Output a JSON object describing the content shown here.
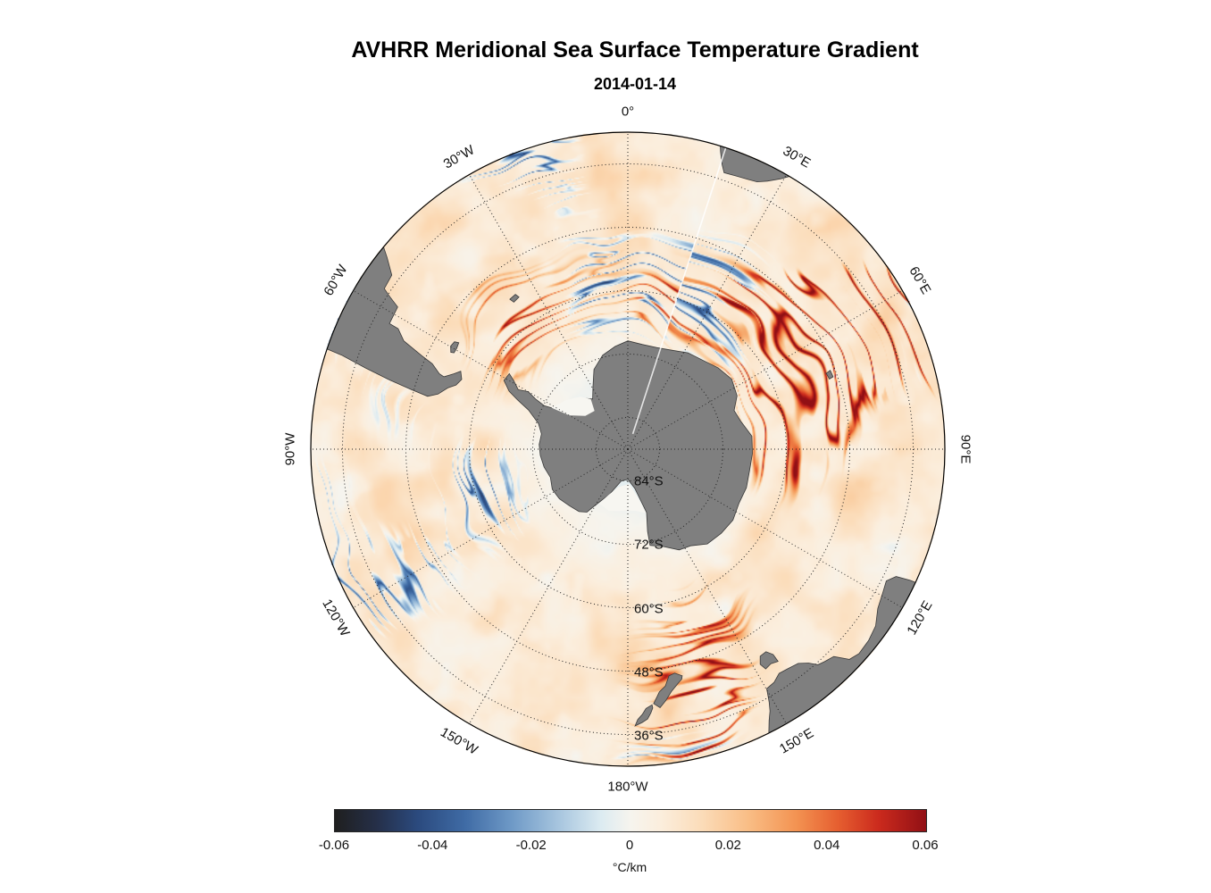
{
  "figure": {
    "title": "AVHRR Meridional Sea Surface Temperature Gradient",
    "subtitle": "2014-01-14"
  },
  "chart_data": {
    "type": "heatmap",
    "title": "AVHRR Meridional Sea Surface Temperature Gradient",
    "subtitle_date": "2014-01-14",
    "projection": "south-polar stereographic, pole centered, 0° at top, east longitudes clockwise",
    "field": "meridional sea surface temperature gradient",
    "units": "°C/km",
    "value_range": [
      -0.06,
      0.06
    ],
    "colorbar": {
      "orientation": "horizontal",
      "tick_labels": [
        "-0.06",
        "-0.04",
        "-0.02",
        "0",
        "0.02",
        "0.04",
        "0.06"
      ],
      "unit_label": "°C/km",
      "stops": [
        [
          0.0,
          "#1f1f1f"
        ],
        [
          0.07,
          "#252f48"
        ],
        [
          0.14,
          "#2b4a7e"
        ],
        [
          0.22,
          "#3f6ba5"
        ],
        [
          0.3,
          "#6f9ac7"
        ],
        [
          0.38,
          "#a8c6df"
        ],
        [
          0.45,
          "#dcebf1"
        ],
        [
          0.5,
          "#f6f4ee"
        ],
        [
          0.55,
          "#fbeedd"
        ],
        [
          0.62,
          "#fbdcb9"
        ],
        [
          0.7,
          "#f9bd85"
        ],
        [
          0.78,
          "#f39352"
        ],
        [
          0.85,
          "#e65f30"
        ],
        [
          0.92,
          "#cb2a1d"
        ],
        [
          1.0,
          "#911015"
        ]
      ]
    },
    "graticule": {
      "style": "dotted",
      "outer_latitude_S": 30,
      "parallels_deg_S": [
        84,
        72,
        60,
        48,
        36
      ],
      "parallel_labels": [
        "84°S",
        "72°S",
        "60°S",
        "48°S",
        "36°S"
      ],
      "meridians": [
        {
          "lon": 0,
          "label": "0°"
        },
        {
          "lon": 30,
          "label": "30°E"
        },
        {
          "lon": 60,
          "label": "60°E"
        },
        {
          "lon": 90,
          "label": "90°E"
        },
        {
          "lon": 120,
          "label": "120°E"
        },
        {
          "lon": 150,
          "label": "150°E"
        },
        {
          "lon": 180,
          "label": "180°W"
        },
        {
          "lon": -150,
          "label": "150°W"
        },
        {
          "lon": -120,
          "label": "120°W"
        },
        {
          "lon": -90,
          "label": "90°W"
        },
        {
          "lon": -60,
          "label": "60°W"
        },
        {
          "lon": -30,
          "label": "30°W"
        }
      ]
    },
    "swath_boundary_lon_E": 18,
    "texture": {
      "seed": 20140114,
      "description": "mottled pale-cream field of weak positive gradients over the Southern Ocean with dense meandering red filaments (strong positive gradients) along the Antarctic Circumpolar Current and Agulhas Return Current, sparse blue (negative) filaments, and very pale near-zero values close to the Antarctic coast"
    },
    "land": {
      "color": "#7f7f7f",
      "outline": "#3a3a3a",
      "ice_color": "#f7f6f1",
      "polygons": {
        "antarctica": [
          [
            0,
            -69.5
          ],
          [
            8,
            -70
          ],
          [
            16,
            -70
          ],
          [
            24,
            -69.5
          ],
          [
            32,
            -68.5
          ],
          [
            40,
            -68
          ],
          [
            48,
            -67
          ],
          [
            56,
            -66.3
          ],
          [
            64,
            -67
          ],
          [
            70,
            -68.6
          ],
          [
            76,
            -68
          ],
          [
            84,
            -66.4
          ],
          [
            92,
            -66.4
          ],
          [
            100,
            -66.6
          ],
          [
            108,
            -66.4
          ],
          [
            116,
            -66.6
          ],
          [
            124,
            -66
          ],
          [
            132,
            -66.2
          ],
          [
            140,
            -66.6
          ],
          [
            147,
            -68.2
          ],
          [
            153,
            -68.6
          ],
          [
            160,
            -70.4
          ],
          [
            167,
            -71.3
          ],
          [
            166.5,
            -74
          ],
          [
            163.5,
            -77.5
          ],
          [
            170,
            -82.5
          ],
          [
            180,
            -84.3
          ],
          [
            -168,
            -83.8
          ],
          [
            -158,
            -80.8
          ],
          [
            -150,
            -77.8
          ],
          [
            -147,
            -75.8
          ],
          [
            -142,
            -75
          ],
          [
            -134,
            -74.6
          ],
          [
            -126,
            -74
          ],
          [
            -118,
            -73.8
          ],
          [
            -110,
            -74.4
          ],
          [
            -102,
            -73.8
          ],
          [
            -94,
            -73.4
          ],
          [
            -87,
            -73.2
          ],
          [
            -80,
            -73.4
          ],
          [
            -74,
            -72.4
          ],
          [
            -68.5,
            -69.8
          ],
          [
            -66,
            -67.2
          ],
          [
            -64,
            -65
          ],
          [
            -61,
            -63.2
          ],
          [
            -57.5,
            -63.4
          ],
          [
            -59,
            -64.8
          ],
          [
            -61.5,
            -66.4
          ],
          [
            -60,
            -68.2
          ],
          [
            -61.5,
            -70.2
          ],
          [
            -62.5,
            -72.2
          ],
          [
            -61,
            -74.2
          ],
          [
            -52,
            -75.6
          ],
          [
            -42,
            -77
          ],
          [
            -35,
            -78.4
          ],
          [
            -29,
            -76.4
          ],
          [
            -23,
            -73.6
          ],
          [
            -15,
            -71.6
          ],
          [
            -7,
            -70.4
          ]
        ],
        "south-america": [
          [
            -71.5,
            -29
          ],
          [
            -71.8,
            -33
          ],
          [
            -72.8,
            -38
          ],
          [
            -73.8,
            -43
          ],
          [
            -74.6,
            -47.5
          ],
          [
            -75.2,
            -50.8
          ],
          [
            -73.8,
            -52.6
          ],
          [
            -71.2,
            -54
          ],
          [
            -69.5,
            -55.3
          ],
          [
            -67.2,
            -55.9
          ],
          [
            -65,
            -55.1
          ],
          [
            -66.6,
            -54.1
          ],
          [
            -68.5,
            -52.6
          ],
          [
            -68.2,
            -51.6
          ],
          [
            -66.4,
            -49.6
          ],
          [
            -65.6,
            -47.2
          ],
          [
            -64.2,
            -42.9
          ],
          [
            -62.3,
            -40.9
          ],
          [
            -62.2,
            -39
          ],
          [
            -58.3,
            -38.8
          ],
          [
            -57.3,
            -36.4
          ],
          [
            -56.6,
            -34.8
          ],
          [
            -53.6,
            -34.5
          ],
          [
            -51.5,
            -31.8
          ],
          [
            -49.8,
            -29
          ],
          [
            -55,
            -29
          ],
          [
            -60,
            -29
          ],
          [
            -65,
            -29
          ]
        ],
        "falkland-islands": [
          [
            -61.3,
            -51.8
          ],
          [
            -59.8,
            -51.2
          ],
          [
            -58.2,
            -51.4
          ],
          [
            -57.8,
            -52.2
          ],
          [
            -59.4,
            -52.4
          ],
          [
            -61,
            -52.4
          ]
        ],
        "south-georgia": [
          [
            -38.2,
            -53.9
          ],
          [
            -36,
            -53.8
          ],
          [
            -35.6,
            -54.6
          ],
          [
            -37.8,
            -54.8
          ]
        ],
        "africa": [
          [
            16.5,
            -28.6
          ],
          [
            17.3,
            -31
          ],
          [
            18.3,
            -33.2
          ],
          [
            19.2,
            -34.6
          ],
          [
            21.5,
            -34.4
          ],
          [
            24,
            -34.1
          ],
          [
            25.8,
            -33.8
          ],
          [
            27.5,
            -32.8
          ],
          [
            29.5,
            -31.2
          ],
          [
            31,
            -29.6
          ],
          [
            32.5,
            -28.6
          ],
          [
            25,
            -28.6
          ],
          [
            20,
            -28.6
          ]
        ],
        "kerguelen": [
          [
            68.7,
            -48.9
          ],
          [
            70.6,
            -48.8
          ],
          [
            70.8,
            -49.6
          ],
          [
            69.1,
            -49.8
          ]
        ],
        "australia": [
          [
            114.8,
            -28.6
          ],
          [
            114.9,
            -31
          ],
          [
            115.4,
            -33.8
          ],
          [
            117,
            -35.1
          ],
          [
            119.5,
            -34.6
          ],
          [
            122.5,
            -33.9
          ],
          [
            125.5,
            -32.4
          ],
          [
            128.5,
            -31.8
          ],
          [
            131.5,
            -31.6
          ],
          [
            133.5,
            -32.2
          ],
          [
            135.2,
            -34.7
          ],
          [
            137.2,
            -35.2
          ],
          [
            138.6,
            -35.6
          ],
          [
            139.8,
            -37
          ],
          [
            141.5,
            -38.2
          ],
          [
            144,
            -38.6
          ],
          [
            146,
            -38.8
          ],
          [
            147.9,
            -37.9
          ],
          [
            149.9,
            -37.6
          ],
          [
            150.8,
            -35.2
          ],
          [
            151.5,
            -33.6
          ],
          [
            152.5,
            -32.1
          ],
          [
            153.5,
            -30.2
          ],
          [
            153.8,
            -28.6
          ],
          [
            145,
            -28.6
          ],
          [
            135,
            -28.6
          ],
          [
            125,
            -28.6
          ]
        ],
        "tasmania": [
          [
            144.7,
            -40.8
          ],
          [
            146.3,
            -41.2
          ],
          [
            147.9,
            -40.9
          ],
          [
            148.4,
            -42.2
          ],
          [
            147.4,
            -43.5
          ],
          [
            145.7,
            -43.6
          ],
          [
            144.7,
            -42.4
          ]
        ],
        "new-zealand-south": [
          [
            166.5,
            -45.9
          ],
          [
            168.2,
            -46.7
          ],
          [
            169.7,
            -46.4
          ],
          [
            171,
            -44.6
          ],
          [
            172.6,
            -43.7
          ],
          [
            173.2,
            -42.9
          ],
          [
            174.2,
            -41.6
          ],
          [
            172.9,
            -40.7
          ],
          [
            171.4,
            -41.9
          ],
          [
            169.8,
            -43.4
          ],
          [
            168,
            -44.6
          ],
          [
            166.8,
            -45.3
          ]
        ],
        "new-zealand-north": [
          [
            174.6,
            -41.4
          ],
          [
            176,
            -40.8
          ],
          [
            176.9,
            -39.7
          ],
          [
            177.9,
            -38.8
          ],
          [
            178.5,
            -37.6
          ],
          [
            177,
            -38.2
          ],
          [
            175.8,
            -38.8
          ],
          [
            175,
            -39.9
          ],
          [
            174.5,
            -40.8
          ]
        ]
      },
      "ice_shelves": {
        "ross": [
          [
            164,
            -77.4
          ],
          [
            172,
            -78.2
          ],
          [
            180,
            -78.4
          ],
          [
            -172,
            -78.2
          ],
          [
            -163,
            -77.8
          ],
          [
            -152,
            -78.4
          ],
          [
            -157,
            -80.6
          ],
          [
            -166,
            -82.6
          ],
          [
            178,
            -83.4
          ],
          [
            169,
            -81
          ]
        ],
        "ronne": [
          [
            -61.5,
            -73.6
          ],
          [
            -52,
            -75
          ],
          [
            -42,
            -76.6
          ],
          [
            -36.5,
            -78.2
          ],
          [
            -41,
            -80.4
          ],
          [
            -52,
            -79.8
          ],
          [
            -60,
            -77.2
          ]
        ]
      }
    }
  }
}
